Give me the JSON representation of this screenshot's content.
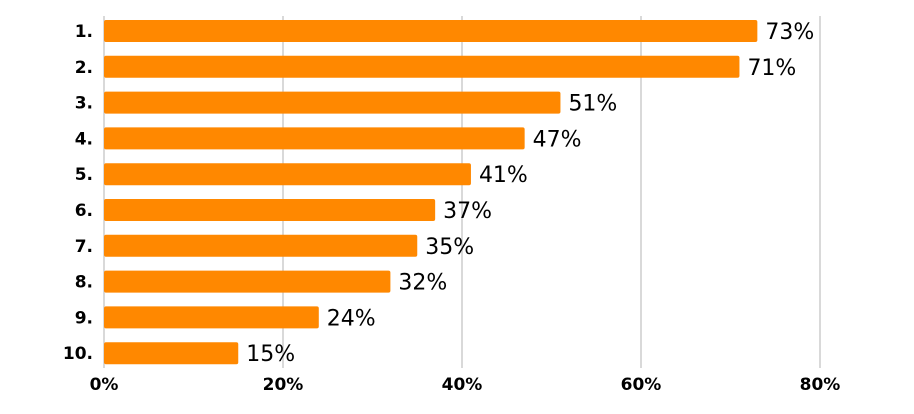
{
  "chart_data": {
    "type": "bar",
    "orientation": "horizontal",
    "categories": [
      "1.",
      "2.",
      "3.",
      "4.",
      "5.",
      "6.",
      "7.",
      "8.",
      "9.",
      "10."
    ],
    "values": [
      73,
      71,
      51,
      47,
      41,
      37,
      35,
      32,
      24,
      15
    ],
    "value_labels": [
      "73%",
      "71%",
      "51%",
      "47%",
      "41%",
      "37%",
      "35%",
      "32%",
      "24%",
      "15%"
    ],
    "xlim": [
      0,
      80
    ],
    "xticks": [
      0,
      20,
      40,
      60,
      80
    ],
    "xtick_labels": [
      "0%",
      "20%",
      "40%",
      "60%",
      "80%"
    ],
    "title": "",
    "xlabel": "",
    "ylabel": "",
    "grid": "vertical",
    "legend": "none",
    "bar_color": "#ff8800",
    "grid_color": "#d9d9d9"
  }
}
